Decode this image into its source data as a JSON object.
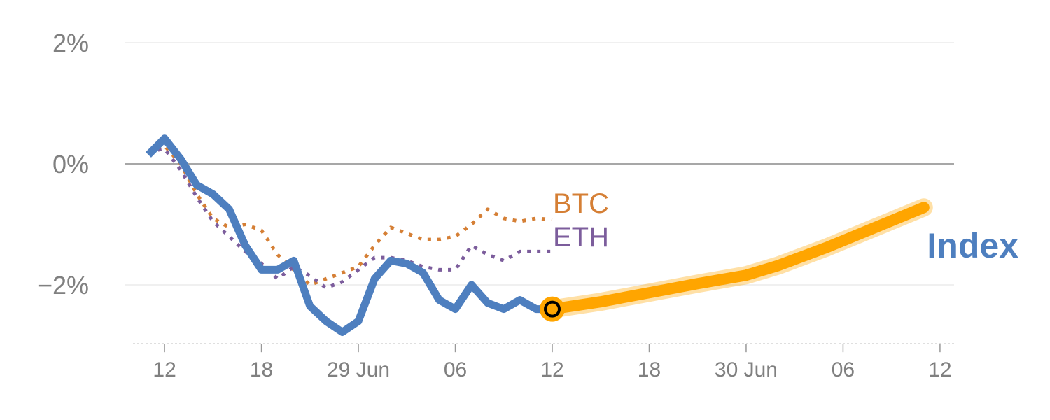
{
  "chart_data": {
    "type": "line",
    "title": "",
    "xlabel": "",
    "ylabel": "",
    "ylim": [
      -2.95,
      2.3
    ],
    "grid": true,
    "y_ticks": [
      {
        "value": 2,
        "label": "2%"
      },
      {
        "value": 0,
        "label": "0%"
      },
      {
        "value": -2,
        "label": "−2%"
      }
    ],
    "x_ticks": [
      {
        "value": 1,
        "label": "12"
      },
      {
        "value": 7,
        "label": "18"
      },
      {
        "value": 13,
        "label": "29 Jun"
      },
      {
        "value": 19,
        "label": "06"
      },
      {
        "value": 25,
        "label": "12"
      },
      {
        "value": 31,
        "label": "18"
      },
      {
        "value": 37,
        "label": "30 Jun"
      },
      {
        "value": 43,
        "label": "06"
      },
      {
        "value": 49,
        "label": "12"
      }
    ],
    "series": [
      {
        "name": "BTC",
        "color": "#d57f35",
        "style": "dotted",
        "x": [
          0,
          1,
          2,
          3,
          4,
          5,
          6,
          7,
          8,
          9,
          10,
          11,
          12,
          13,
          14,
          15,
          16,
          17,
          18,
          19,
          20,
          21,
          22,
          23,
          24,
          25
        ],
        "values": [
          0.2,
          0.3,
          0.0,
          -0.5,
          -0.9,
          -1.05,
          -1.0,
          -1.1,
          -1.5,
          -1.75,
          -2.0,
          -1.9,
          -1.8,
          -1.7,
          -1.35,
          -1.05,
          -1.15,
          -1.25,
          -1.25,
          -1.2,
          -1.0,
          -0.75,
          -0.9,
          -0.95,
          -0.9,
          -0.92
        ]
      },
      {
        "name": "ETH",
        "color": "#7c5d9c",
        "style": "dotted",
        "x": [
          0,
          1,
          2,
          3,
          4,
          5,
          6,
          7,
          8,
          9,
          10,
          11,
          12,
          13,
          14,
          15,
          16,
          17,
          18,
          19,
          20,
          21,
          22,
          23,
          24,
          25
        ],
        "values": [
          0.2,
          0.25,
          -0.1,
          -0.55,
          -0.95,
          -1.2,
          -1.45,
          -1.65,
          -1.9,
          -1.7,
          -1.85,
          -2.05,
          -1.95,
          -1.75,
          -1.55,
          -1.55,
          -1.6,
          -1.7,
          -1.75,
          -1.75,
          -1.35,
          -1.5,
          -1.6,
          -1.45,
          -1.45,
          -1.45
        ]
      },
      {
        "name": "Index",
        "color": "#4e7fbf",
        "style": "solid",
        "x": [
          0,
          1,
          2,
          3,
          4,
          5,
          6,
          7,
          8,
          9,
          10,
          11,
          12,
          13,
          14,
          15,
          16,
          17,
          18,
          19,
          20,
          21,
          22,
          23,
          24,
          25
        ],
        "values": [
          0.15,
          0.42,
          0.08,
          -0.35,
          -0.5,
          -0.75,
          -1.35,
          -1.75,
          -1.75,
          -1.6,
          -2.35,
          -2.6,
          -2.78,
          -2.6,
          -1.9,
          -1.6,
          -1.65,
          -1.8,
          -2.25,
          -2.4,
          -2.0,
          -2.3,
          -2.4,
          -2.25,
          -2.4,
          -2.4
        ]
      },
      {
        "name": "Index forecast",
        "color": "#ffa500",
        "style": "band",
        "x": [
          25,
          28,
          31,
          34,
          37,
          39,
          42,
          45,
          48
        ],
        "values": [
          -2.4,
          -2.28,
          -2.13,
          -1.98,
          -1.84,
          -1.68,
          -1.38,
          -1.05,
          -0.72
        ]
      }
    ],
    "marker": {
      "x": 25,
      "value": -2.4,
      "fill": "#ffa500"
    },
    "labels": {
      "btc": {
        "text": "BTC",
        "color": "#d57f35"
      },
      "eth": {
        "text": "ETH",
        "color": "#7c5d9c"
      },
      "index": {
        "text": "Index",
        "color": "#4e7fbf"
      }
    },
    "colors": {
      "gridline": "#e6e6e6",
      "zero_line": "#8a8a8a",
      "axis_line": "#cccccc",
      "tick_text": "#808080"
    }
  }
}
